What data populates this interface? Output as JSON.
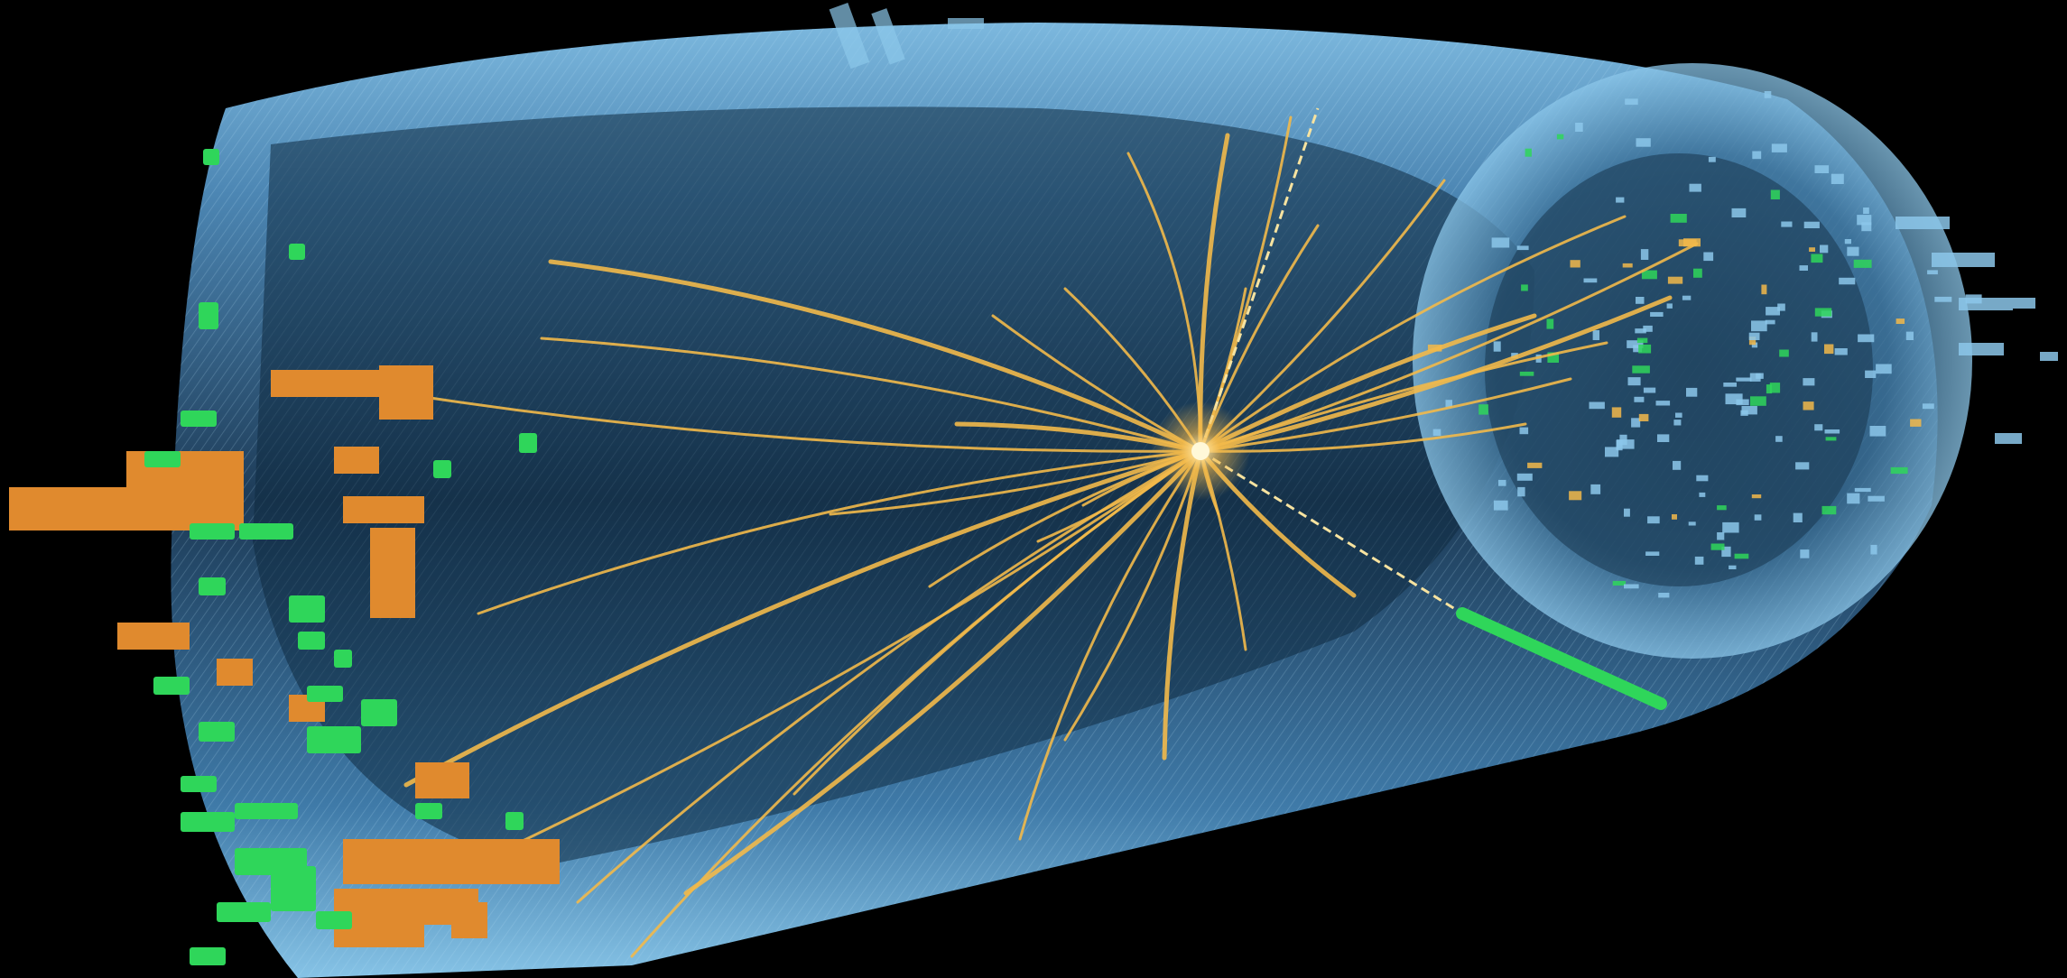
{
  "image": {
    "subject": "particle-collision-event-display",
    "colors": {
      "background": "#000000",
      "detector_cylinder": "#5d9cc8",
      "detector_dark": "#1c3f5c",
      "tracks": "#f2b94a",
      "calorimeter_blocks": "#e08a2e",
      "muon_hits": "#2fd65a",
      "endcap_hits": "#8cc7ea"
    }
  }
}
